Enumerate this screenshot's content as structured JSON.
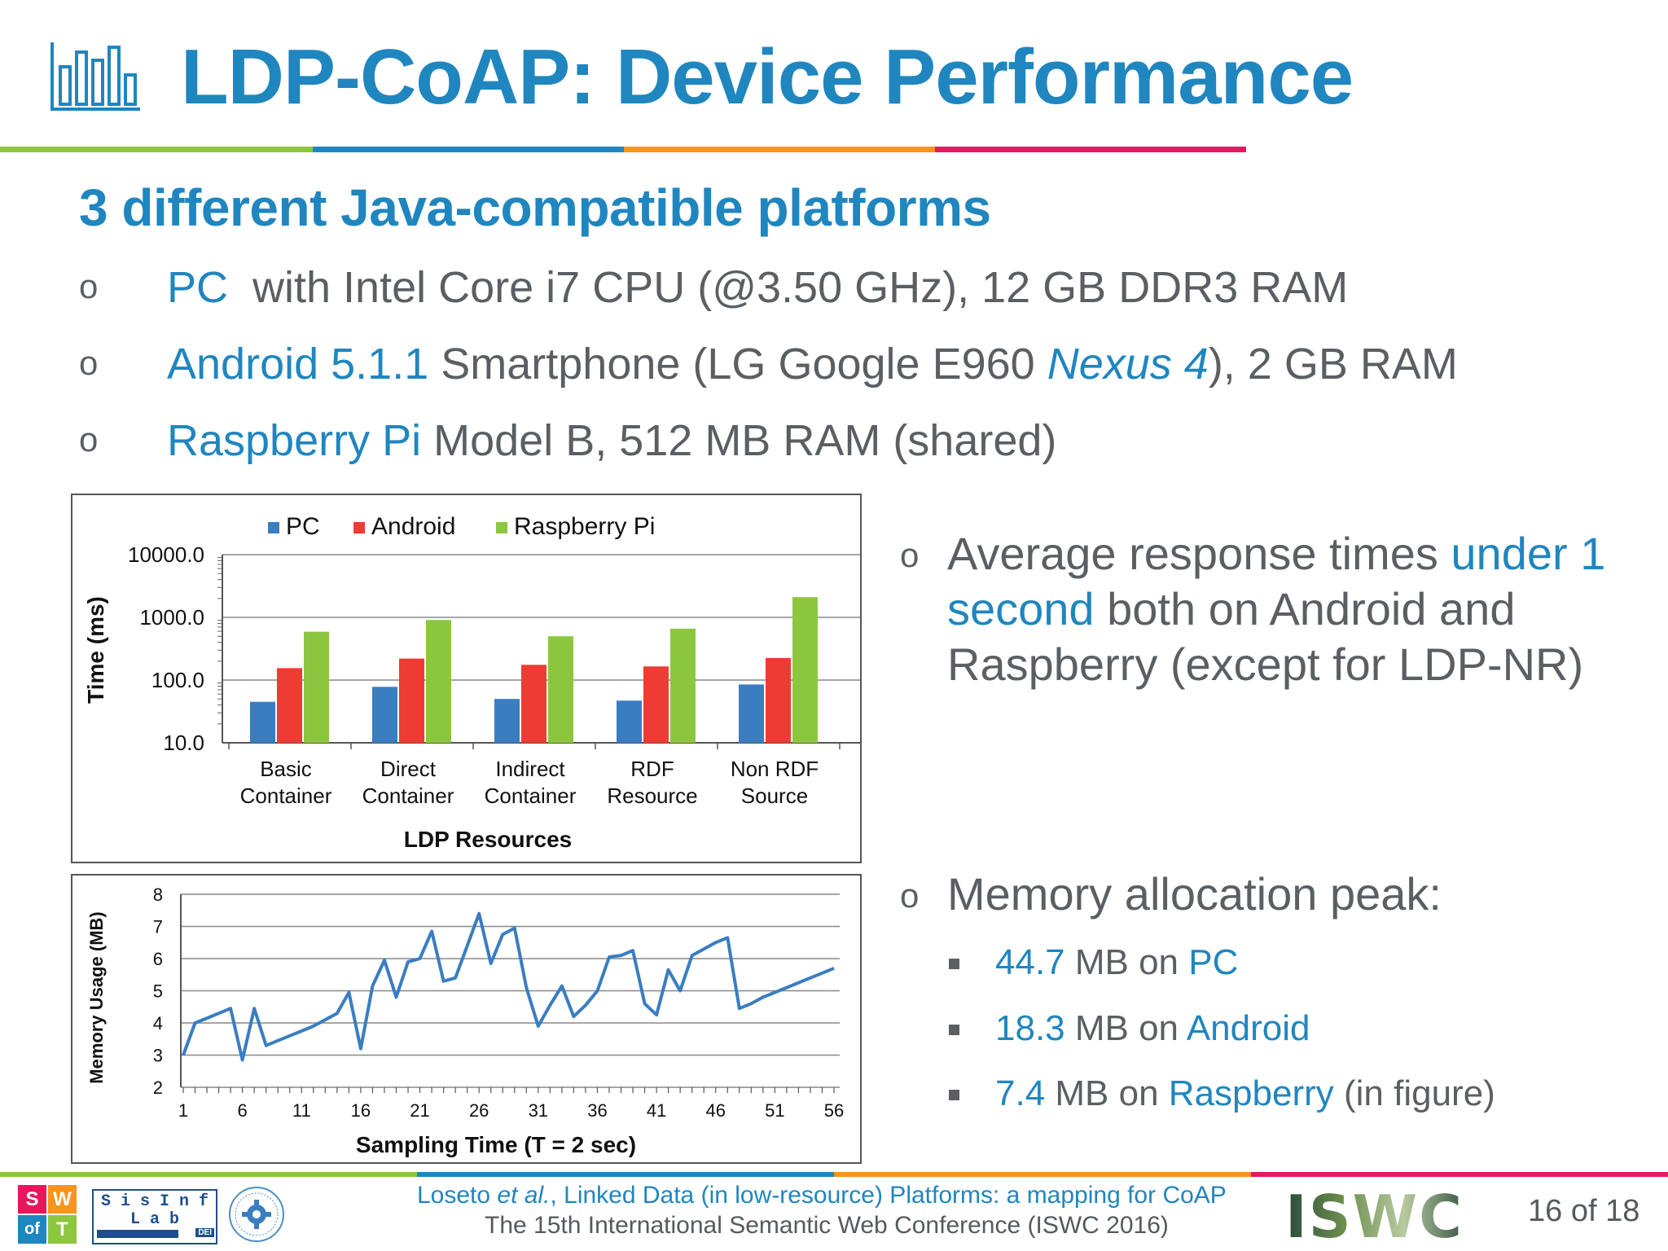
{
  "slide": {
    "title": "LDP-CoAP: Device Performance",
    "title_icon": "bar-chart-icon",
    "subtitle": "3 different Java-compatible platforms",
    "accent_color": "#1f86bf",
    "text_color": "#5b5f63",
    "rule_colors": [
      "#8dc63f",
      "#1f86bf",
      "#f7941d",
      "#e8175d"
    ]
  },
  "bullets": [
    {
      "marker": "o",
      "blue": "PC",
      "rest": "  with Intel Core i7 CPU (@3.50 GHz), 12 GB DDR3 RAM"
    },
    {
      "marker": "o",
      "blue": "Android 5.1.1",
      "rest": " Smartphone (LG Google E960 ",
      "blue_italic": "Nexus 4",
      "rest2": "), 2 GB RAM"
    },
    {
      "marker": "o",
      "blue": "Raspberry Pi",
      "rest": " Model B, 512 MB RAM (shared)"
    }
  ],
  "right_bullets": {
    "response": {
      "marker": "o",
      "pre": "Average response times ",
      "blue": "under 1 second",
      "post": " both on Android and Raspberry (except for LDP-NR)"
    },
    "memory": {
      "marker": "o",
      "text": "Memory allocation peak:"
    },
    "memory_items": [
      {
        "value": "44.7",
        "unit": " MB on ",
        "platform": "PC",
        "note": ""
      },
      {
        "value": "18.3",
        "unit": " MB on ",
        "platform": "Android",
        "note": ""
      },
      {
        "value": "7.4",
        "unit": " MB on ",
        "platform": "Raspberry",
        "note": " (in figure)"
      }
    ]
  },
  "chart_data": [
    {
      "type": "bar",
      "yscale": "log",
      "title": "",
      "xlabel": "LDP Resources",
      "ylabel": "Time (ms)",
      "ylim": [
        10,
        10000
      ],
      "yticks": [
        "10.0",
        "100.0",
        "1000.0",
        "10000.0"
      ],
      "categories": [
        "Basic Container",
        "Direct Container",
        "Indirect Container",
        "RDF Resource",
        "Non RDF Source"
      ],
      "category_lines": [
        [
          "Basic",
          "Container"
        ],
        [
          "Direct",
          "Container"
        ],
        [
          "Indirect",
          "Container"
        ],
        [
          "RDF",
          "Resource"
        ],
        [
          "Non RDF",
          "Source"
        ]
      ],
      "legend_position": "top",
      "gridlines": true,
      "series": [
        {
          "name": "PC",
          "color": "#3a7dc1",
          "values": [
            45,
            78,
            50,
            47,
            85
          ]
        },
        {
          "name": "Android",
          "color": "#ee3b33",
          "values": [
            155,
            220,
            175,
            165,
            225
          ]
        },
        {
          "name": "Raspberry Pi",
          "color": "#8cc63f",
          "values": [
            590,
            910,
            500,
            660,
            2100
          ]
        }
      ]
    },
    {
      "type": "line",
      "title": "",
      "xlabel": "Sampling Time (T = 2 sec)",
      "ylabel": "Memory Usage (MB)",
      "ylim": [
        2,
        8
      ],
      "xlim": [
        1,
        56
      ],
      "yticks": [
        2,
        3,
        4,
        5,
        6,
        7,
        8
      ],
      "xticks": [
        1,
        6,
        11,
        16,
        21,
        26,
        31,
        36,
        41,
        46,
        51,
        56
      ],
      "gridlines": true,
      "series": [
        {
          "color": "#3a7dc1",
          "x": [
            1,
            2,
            3,
            4,
            5,
            6,
            7,
            8,
            9,
            10,
            11,
            12,
            13,
            14,
            15,
            16,
            17,
            18,
            19,
            20,
            21,
            22,
            23,
            24,
            25,
            26,
            27,
            28,
            29,
            30,
            31,
            32,
            33,
            34,
            35,
            36,
            37,
            38,
            39,
            40,
            41,
            42,
            43,
            44,
            45,
            46,
            47,
            48,
            49,
            50,
            51,
            52,
            53,
            54,
            55,
            56
          ],
          "values": [
            3.0,
            4.0,
            4.15,
            4.3,
            4.45,
            2.85,
            4.45,
            3.3,
            3.45,
            3.6,
            3.75,
            3.9,
            4.1,
            4.3,
            4.95,
            3.2,
            5.15,
            5.95,
            4.8,
            5.9,
            6.0,
            6.85,
            5.3,
            5.4,
            6.4,
            7.4,
            5.85,
            6.75,
            6.95,
            5.1,
            3.9,
            4.55,
            5.15,
            4.2,
            4.55,
            5.0,
            6.05,
            6.1,
            6.25,
            4.6,
            4.25,
            5.65,
            5.0,
            6.1,
            6.3,
            6.5,
            6.65,
            4.45,
            4.6,
            4.8,
            4.95,
            5.1,
            5.25,
            5.4,
            5.55,
            5.7
          ]
        }
      ]
    }
  ],
  "footer": {
    "citation_pre": "Loseto ",
    "citation_italic": "et al.",
    "citation_post": ", Linked Data (in low-resource) Platforms: a mapping for CoAP",
    "conference": "The 15th International Semantic Web Conference (ISWC 2016)",
    "page": "16 of 18",
    "logos": {
      "swot": {
        "letters": [
          "S",
          "W",
          "of",
          "T"
        ]
      },
      "sisinf": {
        "line1": "S i s I n f",
        "line2": "L a b",
        "small": "DEI"
      },
      "iswc": {
        "text": "ISWC"
      }
    }
  }
}
